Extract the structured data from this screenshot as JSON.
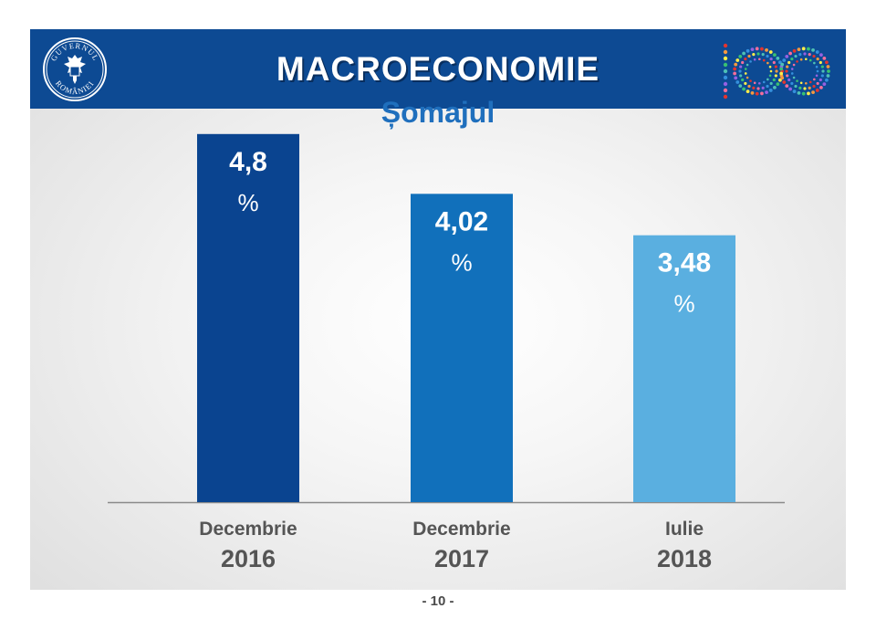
{
  "header": {
    "title": "MACROECONOMIE",
    "seal_text_top": "GUVERNUL",
    "seal_text_bottom": "ROMÂNIEI",
    "logo_text": "100",
    "background_color": "#0d4a93"
  },
  "chart_data": {
    "type": "bar",
    "title": "Șomajul",
    "categories": [
      [
        "Decembrie",
        "2016"
      ],
      [
        "Decembrie",
        "2017"
      ],
      [
        "Iulie",
        "2018"
      ]
    ],
    "values": [
      4.8,
      4.02,
      3.48
    ],
    "value_labels": [
      "4,8",
      "4,02",
      "3,48"
    ],
    "unit": "%",
    "bar_colors": [
      "#0a4490",
      "#1170bb",
      "#5aafe0"
    ],
    "ylim": [
      0,
      5
    ],
    "xlabel": "",
    "ylabel": "",
    "grid": false,
    "legend": "none"
  },
  "footer": {
    "page_number": "- 10 -"
  }
}
